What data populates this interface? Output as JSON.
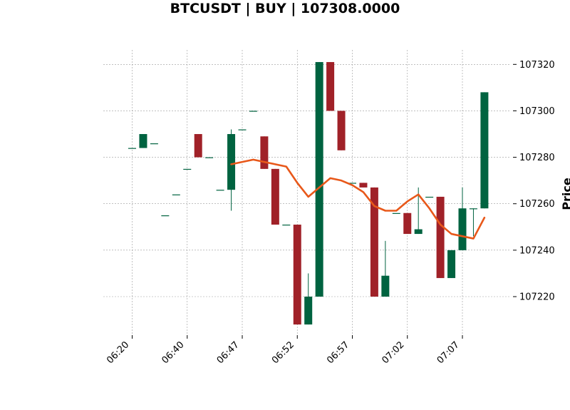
{
  "chart_data": {
    "type": "candlestick",
    "title": "BTCUSDT | BUY | 107308.0000",
    "ylabel": "Price",
    "xlabel": "",
    "ylim": [
      107203,
      107326
    ],
    "yticks": [
      107220,
      107240,
      107260,
      107280,
      107300,
      107320
    ],
    "xticks": [
      "06:20",
      "06:40",
      "06:47",
      "06:52",
      "06:57",
      "07:02",
      "07:07"
    ],
    "xtick_index": [
      0,
      5,
      10,
      15,
      20,
      25,
      30
    ],
    "grid": true,
    "colors": {
      "up": "#006340",
      "down": "#a02128",
      "ma": "#e8581a",
      "grid": "#9a9a9a"
    },
    "candles": [
      {
        "o": 107284,
        "h": 107284,
        "l": 107284,
        "c": 107284
      },
      {
        "o": 107284,
        "h": 107290,
        "l": 107284,
        "c": 107290
      },
      {
        "o": 107286,
        "h": 107286,
        "l": 107286,
        "c": 107286
      },
      {
        "o": 107255,
        "h": 107255,
        "l": 107255,
        "c": 107255
      },
      {
        "o": 107264,
        "h": 107264,
        "l": 107264,
        "c": 107264
      },
      {
        "o": 107275,
        "h": 107275,
        "l": 107275,
        "c": 107275
      },
      {
        "o": 107290,
        "h": 107290,
        "l": 107280,
        "c": 107280
      },
      {
        "o": 107280,
        "h": 107280,
        "l": 107280,
        "c": 107280
      },
      {
        "o": 107266,
        "h": 107266,
        "l": 107266,
        "c": 107266
      },
      {
        "o": 107266,
        "h": 107292,
        "l": 107257,
        "c": 107290
      },
      {
        "o": 107292,
        "h": 107292,
        "l": 107292,
        "c": 107292
      },
      {
        "o": 107300,
        "h": 107300,
        "l": 107300,
        "c": 107300
      },
      {
        "o": 107289,
        "h": 107289,
        "l": 107275,
        "c": 107275
      },
      {
        "o": 107275,
        "h": 107275,
        "l": 107251,
        "c": 107251
      },
      {
        "o": 107251,
        "h": 107251,
        "l": 107251,
        "c": 107251
      },
      {
        "o": 107251,
        "h": 107251,
        "l": 107208,
        "c": 107208
      },
      {
        "o": 107208,
        "h": 107230,
        "l": 107208,
        "c": 107220
      },
      {
        "o": 107220,
        "h": 107321,
        "l": 107220,
        "c": 107321
      },
      {
        "o": 107321,
        "h": 107321,
        "l": 107300,
        "c": 107300
      },
      {
        "o": 107300,
        "h": 107300,
        "l": 107283,
        "c": 107283
      },
      {
        "o": 107269,
        "h": 107269,
        "l": 107269,
        "c": 107269
      },
      {
        "o": 107269,
        "h": 107269,
        "l": 107267,
        "c": 107267
      },
      {
        "o": 107267,
        "h": 107267,
        "l": 107220,
        "c": 107220
      },
      {
        "o": 107220,
        "h": 107244,
        "l": 107220,
        "c": 107229
      },
      {
        "o": 107256,
        "h": 107256,
        "l": 107256,
        "c": 107256
      },
      {
        "o": 107256,
        "h": 107256,
        "l": 107247,
        "c": 107247
      },
      {
        "o": 107247,
        "h": 107267,
        "l": 107247,
        "c": 107249
      },
      {
        "o": 107263,
        "h": 107263,
        "l": 107263,
        "c": 107263
      },
      {
        "o": 107263,
        "h": 107263,
        "l": 107228,
        "c": 107228
      },
      {
        "o": 107228,
        "h": 107240,
        "l": 107228,
        "c": 107240
      },
      {
        "o": 107240,
        "h": 107267,
        "l": 107240,
        "c": 107258
      },
      {
        "o": 107258,
        "h": 107258,
        "l": 107246,
        "c": 107258
      },
      {
        "o": 107258,
        "h": 107308,
        "l": 107258,
        "c": 107308
      }
    ],
    "moving_average": {
      "start_index": 9,
      "values": [
        107277,
        107278,
        107279,
        107278,
        107277,
        107276,
        107269,
        107263,
        107267,
        107271,
        107270,
        107268,
        107265,
        107259,
        107257,
        107257,
        107261,
        107264,
        107258,
        107251,
        107247,
        107246,
        107245,
        107254
      ]
    }
  }
}
